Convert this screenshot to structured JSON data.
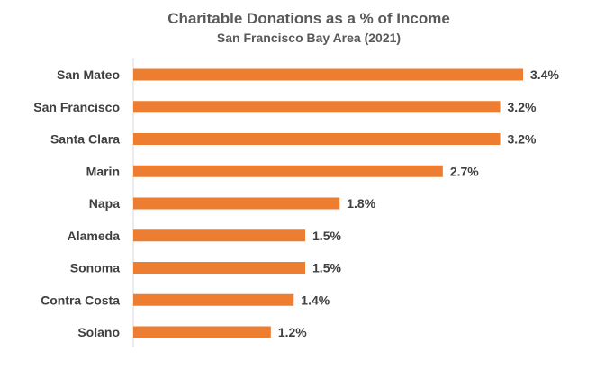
{
  "chart_data": {
    "type": "bar",
    "orientation": "horizontal",
    "title": "Charitable Donations as a % of Income",
    "subtitle": "San Francisco Bay Area (2021)",
    "categories": [
      "San Mateo",
      "San Francisco",
      "Santa Clara",
      "Marin",
      "Napa",
      "Alameda",
      "Sonoma",
      "Contra Costa",
      "Solano"
    ],
    "values": [
      3.4,
      3.2,
      3.2,
      2.7,
      1.8,
      1.5,
      1.5,
      1.4,
      1.2
    ],
    "data_labels": [
      "3.4%",
      "3.2%",
      "3.2%",
      "2.7%",
      "1.8%",
      "1.5%",
      "1.5%",
      "1.4%",
      "1.2%"
    ],
    "xlim": [
      0,
      3.4
    ],
    "grid": false,
    "legend": "none",
    "colors": {
      "bar": "#ED7D31",
      "axis": "#D9D9D9",
      "text": "#404040",
      "title": "#595959"
    }
  }
}
